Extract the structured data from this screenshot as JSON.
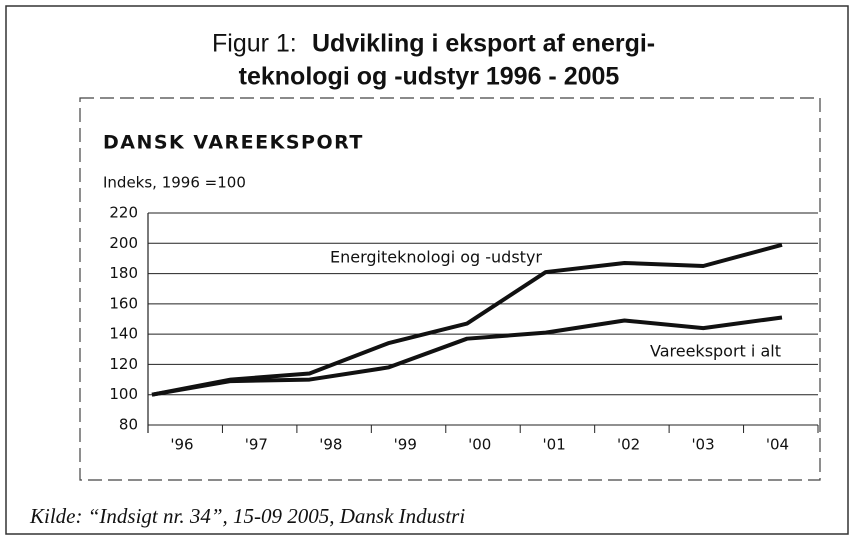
{
  "chart_data": {
    "type": "line",
    "figure_label": "Figur 1:",
    "title_lines": [
      "Udvikling i eksport af energi-",
      "teknologi og -udstyr 1996 - 2005"
    ],
    "subtitle": "DANSK VAREEKSPORT",
    "y_label": "Indeks, 1996 =100",
    "categories": [
      "'96",
      "'97",
      "'98",
      "'99",
      "'00",
      "'01",
      "'02",
      "'03",
      "'04"
    ],
    "series": [
      {
        "name": "Energiteknologi og -udstyr",
        "color": "#111111",
        "values": [
          100,
          110,
          114,
          134,
          147,
          181,
          187,
          185,
          199
        ]
      },
      {
        "name": "Vareeksport i alt",
        "color": "#111111",
        "values": [
          100,
          109,
          110,
          118,
          137,
          141,
          149,
          144,
          151
        ]
      }
    ],
    "ylim": [
      80,
      220
    ],
    "yticks": [
      80,
      100,
      120,
      140,
      160,
      180,
      200,
      220
    ],
    "grid": true,
    "source": "Kilde: “Indsigt nr. 34”, 15-09 2005, Dansk Industri"
  }
}
